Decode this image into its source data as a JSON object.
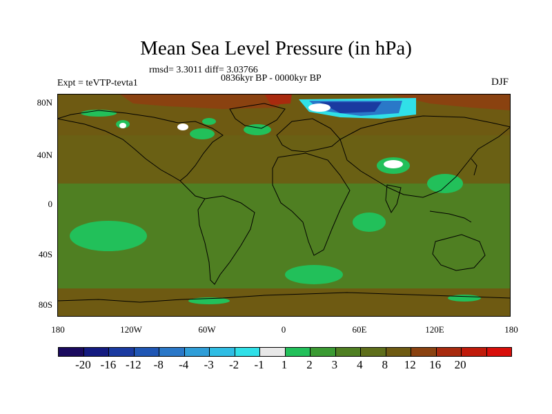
{
  "title": "Mean Sea Level Pressure (in hPa)",
  "stats": "rmsd= 3.3011  diff= 3.03766",
  "subtitle": "0836kyr BP - 0000kyr BP",
  "expt": "Expt = teVTP-tevta1",
  "season": "DJF",
  "lat_labels": [
    "80N",
    "40N",
    "0",
    "40S",
    "80S"
  ],
  "lon_labels": [
    "180",
    "120W",
    "60W",
    "0",
    "60E",
    "120E",
    "180"
  ],
  "colorbar": {
    "colors": [
      "#1a0a5e",
      "#141b80",
      "#1a3aa0",
      "#1f56b4",
      "#2a78c8",
      "#2f9ed8",
      "#2fbde4",
      "#30e0e8",
      "#e8e8e8",
      "#22c05a",
      "#3a9a32",
      "#4f7f22",
      "#5e6e1a",
      "#6e5a12",
      "#8a4210",
      "#a82a0e",
      "#c01a0a",
      "#d80e0a"
    ],
    "labels": [
      "-20",
      "-16",
      "-12",
      "-8",
      "-4",
      "-3",
      "-2",
      "-1",
      "1",
      "2",
      "3",
      "4",
      "8",
      "12",
      "16",
      "20"
    ]
  },
  "map_colors": {
    "ocean_base": "#4f7f22",
    "warm": "#6e5a12",
    "warmer": "#8a4210",
    "hot": "#a82a0e",
    "cool": "#3a9a32",
    "cooler": "#22c05a",
    "neutral": "#e8e8e8",
    "neg1": "#2fbde4",
    "neg2": "#1f56b4"
  }
}
